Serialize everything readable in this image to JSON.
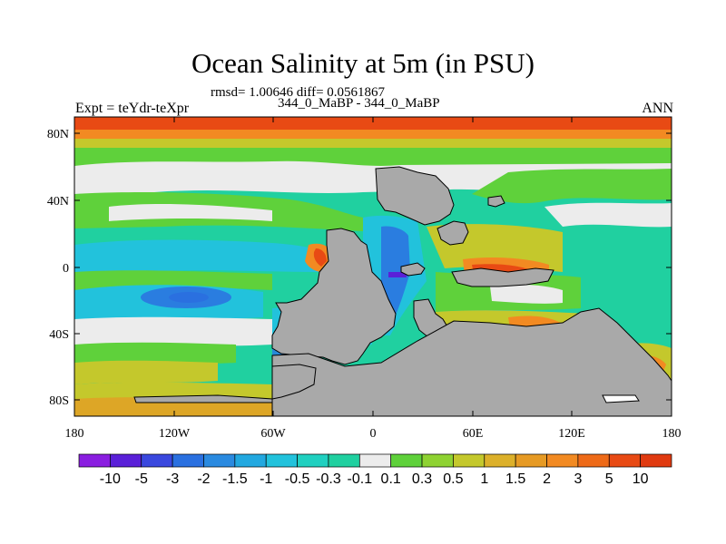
{
  "header": {
    "title": "Ocean Salinity at 5m (in PSU)",
    "stats": "rmsd= 1.00646 diff= 0.0561867",
    "run_label": "344_0_MaBP - 344_0_MaBP",
    "left_label": "Expt = teYdr-teXpr",
    "right_label": "ANN"
  },
  "map": {
    "lat_ticks": [
      "80N",
      "40N",
      "0",
      "40S",
      "80S"
    ],
    "lon_ticks": [
      "180",
      "120W",
      "60W",
      "0",
      "60E",
      "120E",
      "180"
    ],
    "colors": {
      "land": "#a9a9a9",
      "white_band": "#ececec",
      "green": "#5fd13b",
      "teal": "#20d0a0",
      "cyan": "#22c2dc",
      "blue": "#2a7de0",
      "yellow": "#c4c82c",
      "orange": "#f28a22",
      "red": "#e84a14"
    }
  },
  "colorbar": {
    "labels": [
      "-10",
      "-5",
      "-3",
      "-2",
      "-1.5",
      "-1",
      "-0.5",
      "-0.3",
      "-0.1",
      "0.1",
      "0.3",
      "0.5",
      "1",
      "1.5",
      "2",
      "3",
      "5",
      "10"
    ],
    "colors": [
      "#8a1ee0",
      "#5a20d8",
      "#3a48de",
      "#2a70e0",
      "#2a8ae0",
      "#22a8e0",
      "#22c2dc",
      "#20d0c0",
      "#20d0a0",
      "#ececec",
      "#5fd13b",
      "#8ed232",
      "#c4c82c",
      "#dcb02a",
      "#e69a24",
      "#f28a22",
      "#ee6a18",
      "#e84a14",
      "#e03a10"
    ]
  }
}
